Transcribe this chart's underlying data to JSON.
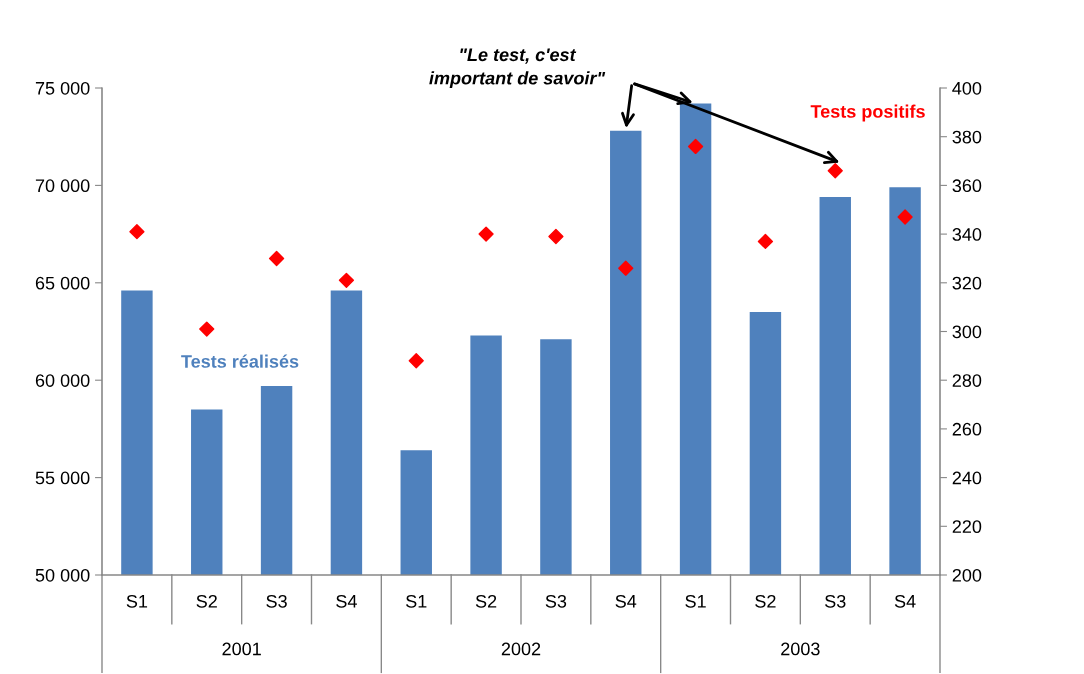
{
  "chart_data": {
    "type": "bar",
    "categories": [
      "S1",
      "S2",
      "S3",
      "S4",
      "S1",
      "S2",
      "S3",
      "S4",
      "S1",
      "S2",
      "S3",
      "S4"
    ],
    "series": [
      {
        "name": "Tests réalisés",
        "color": "#4f81bd",
        "values": [
          64600,
          58500,
          59700,
          64600,
          56400,
          62300,
          62100,
          72800,
          74200,
          63500,
          69400,
          69900
        ]
      },
      {
        "name": "Tests positifs",
        "type": "scatter",
        "axis": "y2",
        "color": "#ff0000",
        "marker": "diamond",
        "values": [
          341,
          301,
          330,
          321,
          288,
          340,
          339,
          326,
          376,
          337,
          366,
          347
        ]
      }
    ],
    "ylim": [
      50000,
      75000
    ],
    "yticks": [
      {
        "value": 50000,
        "label": "50 000"
      },
      {
        "value": 55000,
        "label": "55 000"
      },
      {
        "value": 60000,
        "label": "60 000"
      },
      {
        "value": 65000,
        "label": "65 000"
      },
      {
        "value": 70000,
        "label": "70 000"
      },
      {
        "value": 75000,
        "label": "75 000"
      }
    ],
    "y2lim": [
      200,
      400
    ],
    "y2ticks": [
      200,
      220,
      240,
      260,
      280,
      300,
      320,
      340,
      360,
      380,
      400
    ],
    "annotations": [
      "2001",
      "2002",
      "2003",
      "\"Le test, c'est\nimportant de savoir\""
    ],
    "grid": false,
    "legend": false
  }
}
